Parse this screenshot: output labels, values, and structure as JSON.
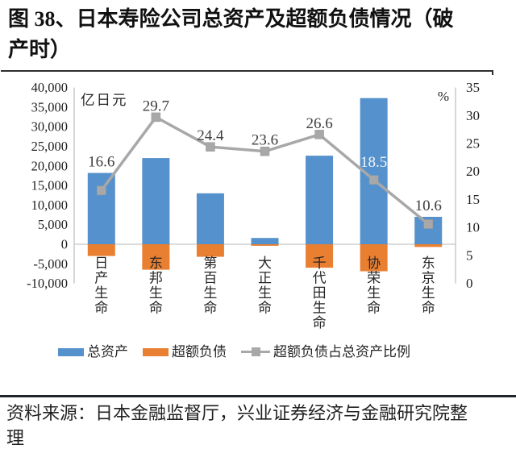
{
  "figure": {
    "title": "图 38、日本寿险公司总资产及超额负债情况（破产时）",
    "source": "资料来源：日本金融监督厅，兴业证券经济与金融研究院整理"
  },
  "chart_data": {
    "type": "bar",
    "subtype": "bar-line-combo",
    "categories": [
      "日产生命",
      "东邦生命",
      "第百生命",
      "大正生命",
      "千代田生命",
      "协荣生命",
      "东京生命"
    ],
    "series": [
      {
        "name": "总资产",
        "type": "bar",
        "axis": "left",
        "color": "#5591CC",
        "values": [
          18200,
          22000,
          13000,
          1600,
          22600,
          37300,
          7000
        ]
      },
      {
        "name": "超额负债",
        "type": "bar",
        "axis": "left",
        "color": "#E87F31",
        "values": [
          -3000,
          -6500,
          -3200,
          -400,
          -6000,
          -6900,
          -700
        ]
      },
      {
        "name": "超额负债占总资产比例",
        "type": "line",
        "axis": "right",
        "color": "#A8A8A8",
        "values": [
          16.6,
          29.7,
          24.4,
          23.6,
          26.6,
          18.5,
          10.6
        ],
        "point_labels": [
          "16.6",
          "29.7",
          "24.4",
          "23.6",
          "26.6",
          "18.5",
          "10.6"
        ],
        "point_label_colors": [
          "#3d3d3d",
          "#3d3d3d",
          "#3d3d3d",
          "#3d3d3d",
          "#3d3d3d",
          "#f5f5f5",
          "#3d3d3d"
        ]
      }
    ],
    "left_axis": {
      "unit_label": "亿日元",
      "min": -10000,
      "max": 40000,
      "step": 5000
    },
    "right_axis": {
      "unit_label": "%",
      "min": 0,
      "max": 35,
      "step": 5
    },
    "grid": "zero-line-only",
    "legend_position": "bottom",
    "axis_line_color": "#C6C6C6",
    "tick_label_color": "#1f1f1f"
  }
}
